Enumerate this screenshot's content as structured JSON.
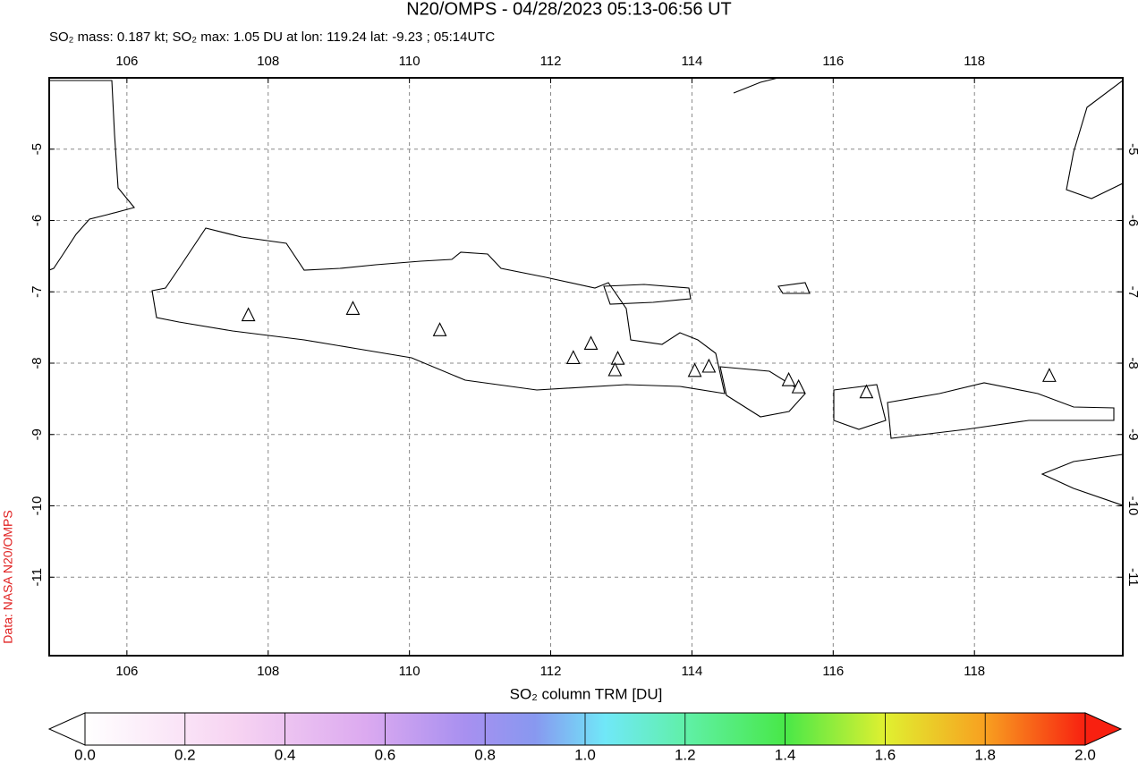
{
  "chart_data": {
    "type": "map",
    "title": "N20/OMPS - 04/28/2023 05:13-06:56 UT",
    "subtitle": "SO₂ mass: 0.187 kt; SO₂ max: 1.05 DU at lon: 119.24 lat: -9.23 ; 05:14UTC",
    "side_note": "Data: NASA N20/OMPS",
    "xlim": [
      104.9,
      120.1
    ],
    "ylim": [
      -12.1,
      -4.0
    ],
    "xticks": [
      106,
      108,
      110,
      112,
      114,
      116,
      118
    ],
    "yticks": [
      -5,
      -6,
      -7,
      -8,
      -9,
      -10,
      -11
    ],
    "grid": true,
    "volcanoes": {
      "x": [
        107.72,
        109.2,
        110.43,
        112.32,
        112.57,
        112.95,
        112.91,
        114.04,
        114.24,
        115.37,
        115.51,
        116.47,
        119.06
      ],
      "y": [
        -7.33,
        -7.24,
        -7.54,
        -7.93,
        -7.73,
        -7.94,
        -8.1,
        -8.11,
        -8.05,
        -8.24,
        -8.34,
        -8.41,
        -8.18
      ]
    },
    "colorbar": {
      "label": "SO₂ column TRM [DU]",
      "lim": [
        0,
        2
      ],
      "ticks": [
        {
          "value": 0,
          "label": "0.0"
        },
        0.2,
        0.4,
        0.6,
        0.8,
        {
          "value": 1,
          "label": "1.0"
        },
        1.2,
        1.4,
        1.6,
        1.8,
        {
          "value": 2,
          "label": "2.0"
        }
      ]
    }
  }
}
